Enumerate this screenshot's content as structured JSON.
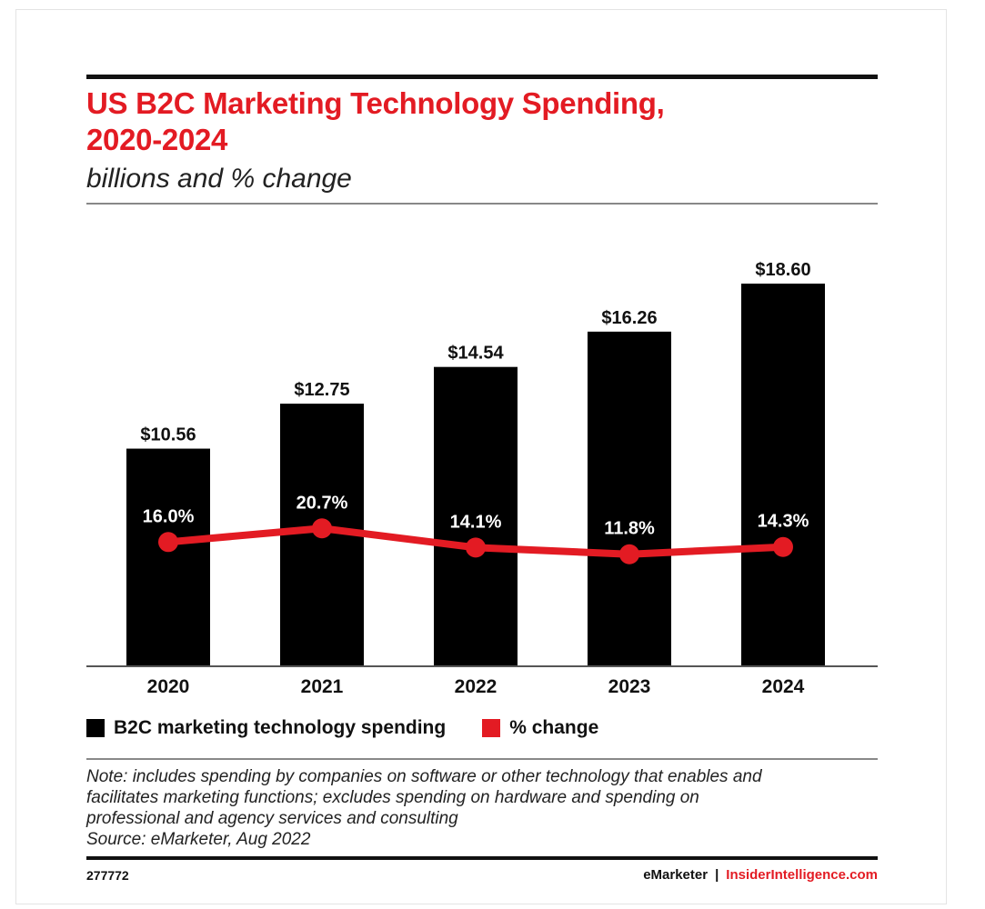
{
  "header": {
    "title_line1": "US B2C Marketing Technology Spending,",
    "title_line2": "2020-2024",
    "subtitle": "billions and % change"
  },
  "chart_data": {
    "type": "bar",
    "categories": [
      "2020",
      "2021",
      "2022",
      "2023",
      "2024"
    ],
    "series": [
      {
        "name": "B2C marketing technology spending",
        "type": "bar",
        "color": "#000000",
        "values": [
          10.56,
          12.75,
          14.54,
          16.26,
          18.6
        ],
        "labels": [
          "$10.56",
          "$12.75",
          "$14.54",
          "$16.26",
          "$18.60"
        ]
      },
      {
        "name": "% change",
        "type": "line",
        "color": "#e31b23",
        "values": [
          16.0,
          20.7,
          14.1,
          11.8,
          14.3
        ],
        "labels": [
          "16.0%",
          "20.7%",
          "14.1%",
          "11.8%",
          "14.3%"
        ]
      }
    ],
    "title": "US B2C Marketing Technology Spending, 2020-2024",
    "subtitle": "billions and % change",
    "grid": false,
    "legend_position": "bottom-left"
  },
  "legend": {
    "bar_label": "B2C marketing technology spending",
    "line_label": "% change"
  },
  "note": {
    "line1": "Note: includes spending by companies on software or other technology that enables and",
    "line2": "facilitates marketing functions; excludes spending on hardware and spending on",
    "line3": "professional and agency services and consulting",
    "source": "Source: eMarketer, Aug 2022"
  },
  "footer": {
    "chart_id": "277772",
    "brand": "eMarketer",
    "separator": "|",
    "site": "InsiderIntelligence.com"
  },
  "colors": {
    "accent": "#e31b23",
    "bar": "#000000",
    "text": "#111111"
  }
}
